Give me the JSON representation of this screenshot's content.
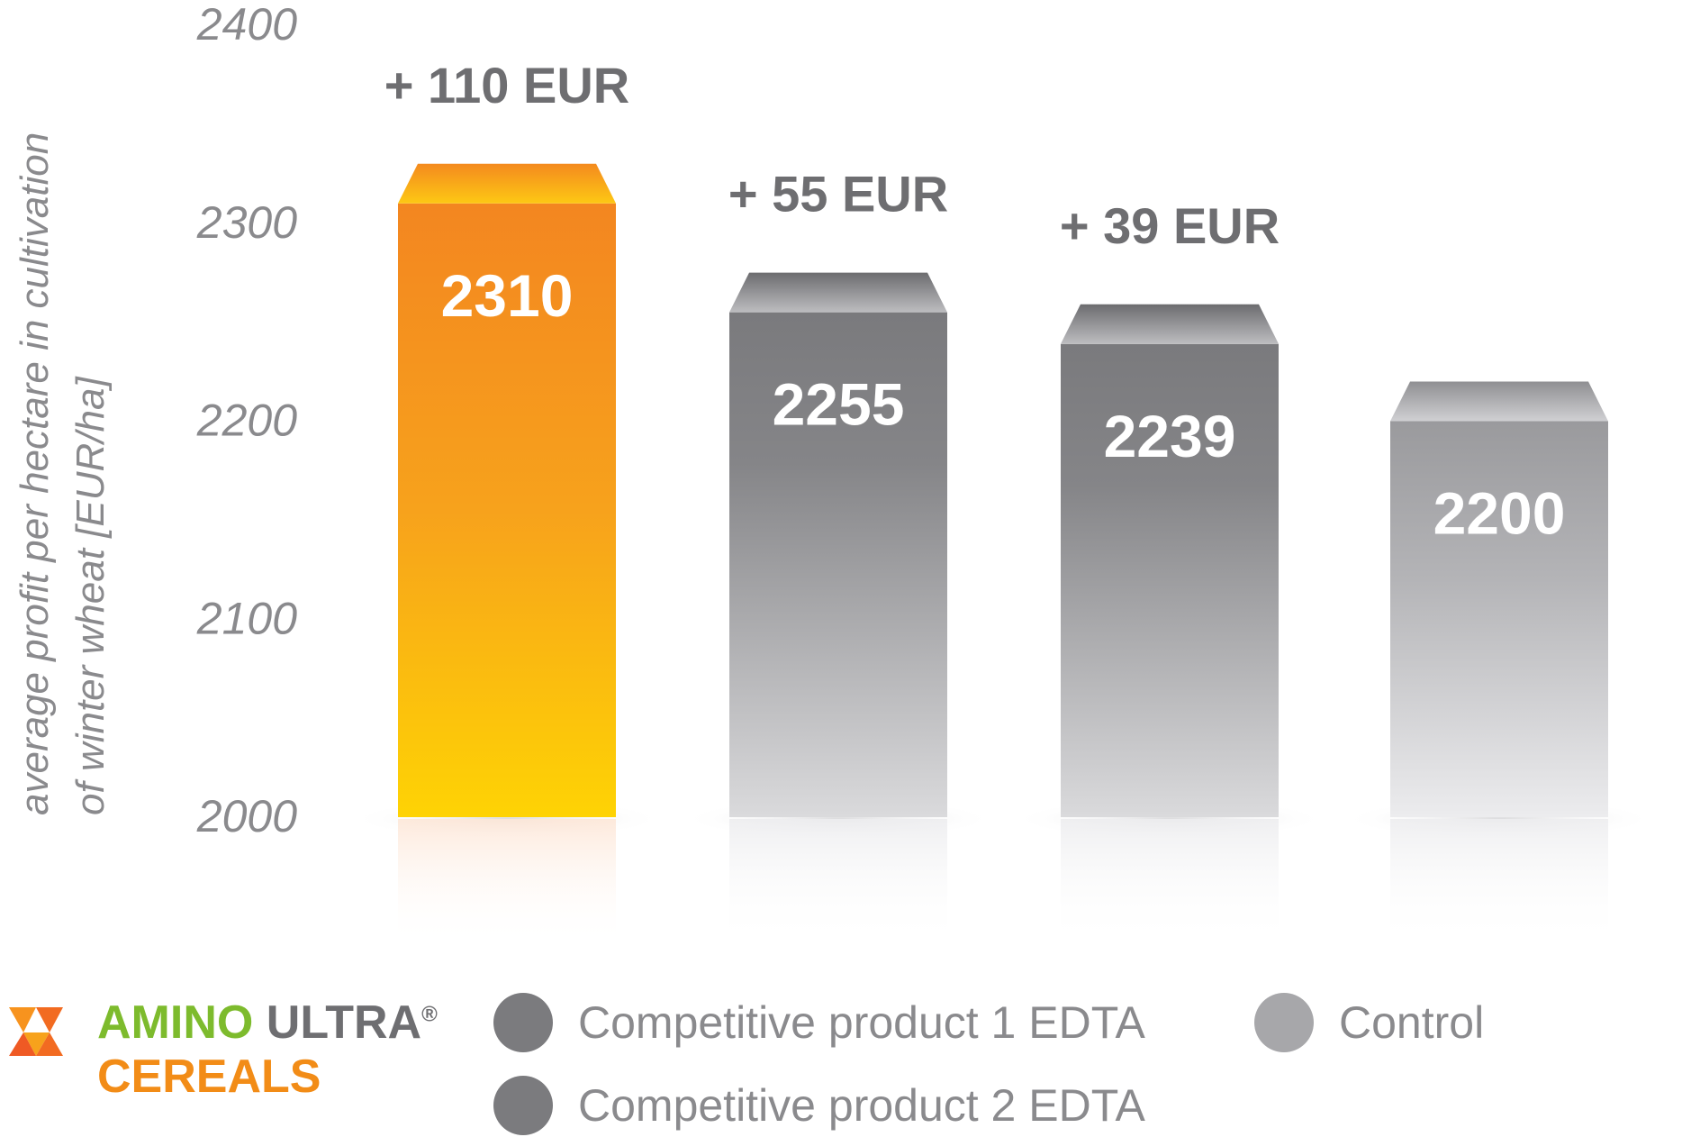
{
  "chart_data": {
    "type": "bar",
    "ylabel_lines": [
      "average profit per hectare in cultivation",
      "of winter wheat [EUR/ha]"
    ],
    "ylim": [
      2000,
      2400
    ],
    "yticks": [
      2000,
      2100,
      2200,
      2300,
      2400
    ],
    "grid": false,
    "categories": [
      "AMINO ULTRA® CEREALS",
      "Competitive product 1 EDTA",
      "Competitive product 2 EDTA",
      "Control"
    ],
    "values": [
      2310,
      2255,
      2239,
      2200
    ],
    "value_labels": [
      "2310",
      "2255",
      "2239",
      "2200"
    ],
    "difference_labels": [
      "+ 110 EUR",
      "+ 55 EUR",
      "+ 39 EUR",
      ""
    ],
    "colors": [
      "#f7931e",
      "#7b7b7e",
      "#7b7b7e",
      "#a7a7aa"
    ]
  },
  "legend": {
    "brand_amino": "AMINO",
    "brand_ultra": "ULTRA",
    "brand_reg": "®",
    "brand_cereals": "CEREALS",
    "items": [
      {
        "label": "Competitive product 1 EDTA",
        "color": "#7b7b7e"
      },
      {
        "label": "Competitive product 2 EDTA",
        "color": "#7b7b7e"
      },
      {
        "label": "Control",
        "color": "#a7a7aa"
      }
    ]
  }
}
